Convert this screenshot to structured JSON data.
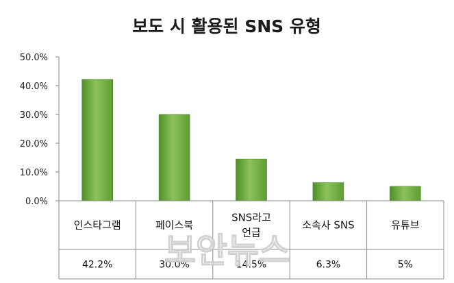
{
  "chart_data": {
    "type": "bar",
    "title": "보도 시 활용된 SNS 유형",
    "categories": [
      "인스타그램",
      "페이스북",
      "SNS라고 언급",
      "소속사 SNS",
      "유튜브"
    ],
    "category_lines": [
      [
        "인스타그램"
      ],
      [
        "페이스북"
      ],
      [
        "SNS라고",
        "언급"
      ],
      [
        "소속사 SNS"
      ],
      [
        "유튜브"
      ]
    ],
    "values": [
      42.2,
      30.0,
      14.5,
      6.3,
      5.0
    ],
    "value_labels": [
      "42.2%",
      "30.0%",
      "14.5%",
      "6.3%",
      "5%"
    ],
    "y_ticks": [
      "0.0%",
      "10.0%",
      "20.0%",
      "30.0%",
      "40.0%",
      "50.0%"
    ],
    "ylim": [
      0,
      50
    ],
    "grid": false,
    "legend": "none",
    "bar_color": "#6fb042"
  },
  "watermark": "보안뉴스"
}
